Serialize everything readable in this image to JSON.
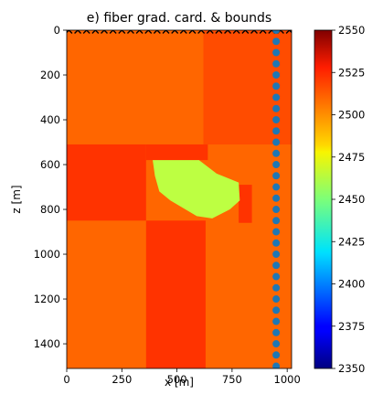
{
  "chart_data": {
    "type": "heatmap",
    "title": "e) fiber grad. card. & bounds",
    "xlabel": "x [m]",
    "ylabel": "z [m]",
    "xlim": [
      0,
      1020
    ],
    "ylim": [
      1510,
      0
    ],
    "x_ticks": [
      0,
      250,
      500,
      750,
      1000
    ],
    "x_tick_labels": [
      "0",
      "250",
      "500",
      "750",
      "1000"
    ],
    "y_ticks": [
      0,
      200,
      400,
      600,
      800,
      1000,
      1200,
      1400
    ],
    "y_tick_labels": [
      "0",
      "200",
      "400",
      "600",
      "800",
      "1000",
      "1200",
      "1400"
    ],
    "colorbar": {
      "colormap": "jet",
      "range": [
        2350,
        2550
      ],
      "ticks": [
        2350,
        2375,
        2400,
        2425,
        2450,
        2475,
        2500,
        2525,
        2550
      ],
      "tick_labels": [
        "2350",
        "2375",
        "2400",
        "2425",
        "2450",
        "2475",
        "2500",
        "2525",
        "2550"
      ]
    },
    "regions": [
      {
        "x": [
          0,
          1020
        ],
        "z": [
          0,
          1510
        ],
        "value": 2505
      },
      {
        "x": [
          620,
          1020
        ],
        "z": [
          0,
          510
        ],
        "value": 2510
      },
      {
        "x": [
          0,
          360
        ],
        "z": [
          510,
          850
        ],
        "value": 2515
      },
      {
        "x": [
          360,
          640
        ],
        "z": [
          510,
          580
        ],
        "value": 2515
      },
      {
        "x": [
          780,
          840
        ],
        "z": [
          690,
          860
        ],
        "value": 2515
      },
      {
        "x": [
          360,
          630
        ],
        "z": [
          850,
          1510
        ],
        "value": 2515
      }
    ],
    "inclusion": {
      "value": 2462,
      "outline": [
        [
          390,
          580
        ],
        [
          600,
          580
        ],
        [
          680,
          640
        ],
        [
          780,
          680
        ],
        [
          785,
          760
        ],
        [
          740,
          800
        ],
        [
          660,
          840
        ],
        [
          590,
          830
        ],
        [
          470,
          760
        ],
        [
          420,
          720
        ],
        [
          400,
          650
        ]
      ]
    },
    "sources_x": {
      "marker": "x",
      "color": "#000000",
      "z": 0,
      "x": [
        10,
        50,
        90,
        130,
        170,
        210,
        250,
        290,
        330,
        370,
        410,
        450,
        490,
        530,
        570,
        610,
        650,
        690,
        730,
        770,
        810,
        850,
        890,
        930,
        970,
        1010
      ]
    },
    "receivers": {
      "marker": "circle",
      "color": "#1f77b4",
      "x": 950,
      "z": [
        0,
        50,
        100,
        150,
        200,
        250,
        300,
        350,
        400,
        450,
        500,
        550,
        600,
        650,
        700,
        750,
        800,
        850,
        900,
        950,
        1000,
        1050,
        1100,
        1150,
        1200,
        1250,
        1300,
        1350,
        1400,
        1450,
        1500
      ]
    }
  }
}
